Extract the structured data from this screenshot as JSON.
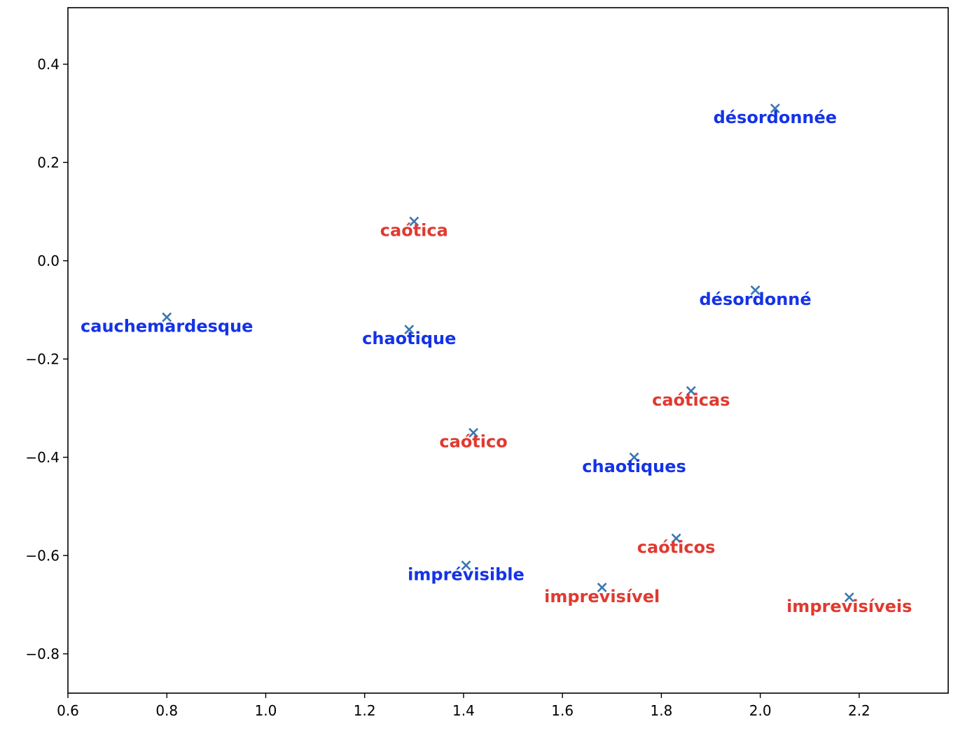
{
  "chart_data": {
    "type": "scatter",
    "title": "",
    "xlabel": "",
    "ylabel": "",
    "xlim": [
      0.6,
      2.38
    ],
    "ylim": [
      -0.88,
      0.515
    ],
    "xticks": [
      0.6,
      0.8,
      1.0,
      1.2,
      1.4,
      1.6,
      1.8,
      2.0,
      2.2
    ],
    "xtick_labels": [
      "0.6",
      "0.8",
      "1.0",
      "1.2",
      "1.4",
      "1.6",
      "1.8",
      "2.0",
      "2.2"
    ],
    "yticks": [
      0.4,
      0.2,
      0.0,
      -0.2,
      -0.4,
      -0.6,
      -0.8
    ],
    "ytick_labels": [
      "0.4",
      "0.2",
      "0.0",
      "−0.2",
      "−0.4",
      "−0.6",
      "−0.8"
    ],
    "grid": false,
    "marker": "x",
    "marker_color": "#3a76af",
    "group_colors": {
      "french": "#1433e6",
      "portuguese": "#e03a30"
    },
    "points": [
      {
        "label": "désordonnée",
        "x": 2.03,
        "y": 0.31,
        "group": "french"
      },
      {
        "label": "caótica",
        "x": 1.3,
        "y": 0.08,
        "group": "portuguese"
      },
      {
        "label": "désordonné",
        "x": 1.99,
        "y": -0.06,
        "group": "french"
      },
      {
        "label": "cauchemardesque",
        "x": 0.8,
        "y": -0.115,
        "group": "french"
      },
      {
        "label": "chaotique",
        "x": 1.29,
        "y": -0.14,
        "group": "french"
      },
      {
        "label": "caóticas",
        "x": 1.86,
        "y": -0.265,
        "group": "portuguese"
      },
      {
        "label": "caótico",
        "x": 1.42,
        "y": -0.35,
        "group": "portuguese"
      },
      {
        "label": "chaotiques",
        "x": 1.745,
        "y": -0.4,
        "group": "french"
      },
      {
        "label": "caóticos",
        "x": 1.83,
        "y": -0.565,
        "group": "portuguese"
      },
      {
        "label": "imprévisible",
        "x": 1.405,
        "y": -0.62,
        "group": "french"
      },
      {
        "label": "imprevisível",
        "x": 1.68,
        "y": -0.665,
        "group": "portuguese"
      },
      {
        "label": "imprevisíveis",
        "x": 2.18,
        "y": -0.685,
        "group": "portuguese"
      }
    ]
  }
}
